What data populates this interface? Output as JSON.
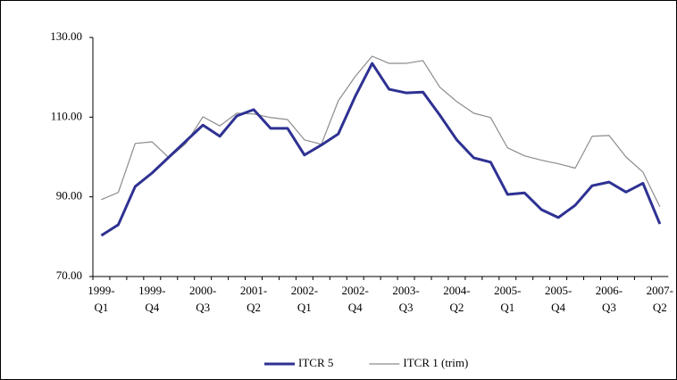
{
  "chart_data": {
    "type": "line",
    "categories": [
      "1999-Q1",
      null,
      null,
      "1999-Q4",
      null,
      null,
      "2000-Q3",
      null,
      null,
      "2001-Q2",
      null,
      null,
      "2002-Q1",
      null,
      null,
      "2002-Q4",
      null,
      null,
      "2003-Q3",
      null,
      null,
      "2004-Q2",
      null,
      null,
      "2005-Q1",
      null,
      null,
      "2005-Q4",
      null,
      null,
      "2006-Q3",
      null,
      null,
      "2007-Q2"
    ],
    "series": [
      {
        "name": "ITCR 5",
        "color": "#2e3192",
        "values": [
          80.3,
          83.0,
          92.6,
          96.0,
          100.0,
          104.0,
          108.0,
          105.2,
          110.3,
          111.9,
          107.2,
          107.2,
          100.5,
          103.0,
          105.8,
          115.2,
          123.5,
          117.0,
          116.1,
          116.3,
          110.5,
          104.3,
          99.8,
          98.7,
          90.6,
          91.0,
          86.8,
          84.8,
          87.9,
          92.8,
          93.7,
          91.2,
          93.4,
          83.2
        ]
      },
      {
        "name": "ITCR 1 (trim)",
        "color": "#8c8c8c",
        "values": [
          89.3,
          91.1,
          103.4,
          103.8,
          99.8,
          103.4,
          110.1,
          107.8,
          111.0,
          110.8,
          109.9,
          109.4,
          104.3,
          103.2,
          114.1,
          120.2,
          125.3,
          123.5,
          123.5,
          124.2,
          117.5,
          113.9,
          111.0,
          109.9,
          102.3,
          100.3,
          99.2,
          98.3,
          97.2,
          105.2,
          105.4,
          100.0,
          96.2,
          87.5
        ]
      }
    ],
    "ylim": [
      70,
      130
    ],
    "yticks": [
      {
        "value": 70,
        "label": "70.00"
      },
      {
        "value": 90,
        "label": "90.00"
      },
      {
        "value": 110,
        "label": "110.00"
      },
      {
        "value": 130,
        "label": "130.00"
      }
    ],
    "grid": false,
    "legend": "bottom"
  }
}
